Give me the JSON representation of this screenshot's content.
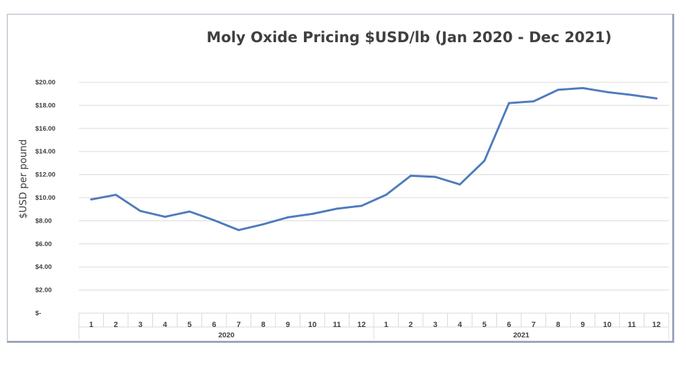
{
  "chart_data": {
    "type": "line",
    "title": "Moly Oxide Pricing $USD/lb (Jan 2020 - Dec 2021)",
    "ylabel": "$USD per pound",
    "xlabel": "",
    "ylim": [
      0,
      20
    ],
    "yticks": [
      0,
      2,
      4,
      6,
      8,
      10,
      12,
      14,
      16,
      18,
      20
    ],
    "ytick_labels": [
      "$-",
      "$2.00",
      "$4.00",
      "$6.00",
      "$8.00",
      "$10.00",
      "$12.00",
      "$14.00",
      "$16.00",
      "$18.00",
      "$20.00"
    ],
    "grid": true,
    "legend": "none",
    "line_color": "#4f7bbd",
    "groups": [
      {
        "label": "2020",
        "categories": [
          "1",
          "2",
          "3",
          "4",
          "5",
          "6",
          "7",
          "8",
          "9",
          "10",
          "11",
          "12"
        ]
      },
      {
        "label": "2021",
        "categories": [
          "1",
          "2",
          "3",
          "4",
          "5",
          "6",
          "7",
          "8",
          "9",
          "10",
          "11",
          "12"
        ]
      }
    ],
    "series": [
      {
        "values": [
          9.85,
          10.25,
          8.85,
          8.35,
          8.8,
          8.05,
          7.2,
          7.7,
          8.3,
          8.6,
          9.05,
          9.3,
          10.25,
          11.9,
          11.8,
          11.15,
          13.2,
          18.2,
          18.35,
          19.35,
          19.5,
          19.15,
          18.9,
          18.6
        ]
      }
    ]
  }
}
